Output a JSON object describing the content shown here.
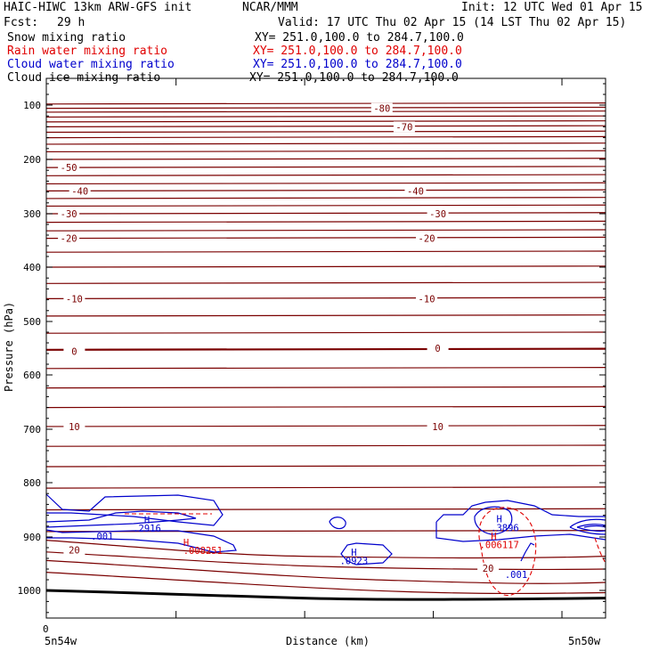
{
  "header": {
    "model": "HAIC-HIWC 13km ARW-GFS init",
    "org": "NCAR/MMM",
    "init": "Init: 12 UTC Wed 01 Apr 15",
    "fcst_label": "Fcst:",
    "fcst_value": "29 h",
    "valid": "Valid: 17 UTC Thu 02 Apr 15 (14 LST Thu 02 Apr 15)"
  },
  "fields": [
    {
      "name": "Snow mixing ratio",
      "xy": "XY= 251.0,100.0 to 284.7,100.0",
      "color": "#000000"
    },
    {
      "name": "Rain water mixing ratio",
      "xy": "XY= 251.0,100.0 to 284.7,100.0",
      "color": "#e00000"
    },
    {
      "name": "Cloud water mixing ratio",
      "xy": "XY= 251.0,100.0 to 284.7,100.0",
      "color": "#0000cc"
    },
    {
      "name": "Cloud ice mixing ratio",
      "xy": "XY= 251.0,100.0 to 284.7,100.0",
      "color": "#000000"
    }
  ],
  "chart_data": {
    "type": "contour-cross-section",
    "ylabel": "Pressure (hPa)",
    "xlabel": "Distance (km)",
    "yticks": [
      100,
      200,
      300,
      400,
      500,
      600,
      700,
      800,
      900,
      1000
    ],
    "ylim": [
      1050,
      50
    ],
    "x_start_label": "0",
    "x_left_location": "5n54w",
    "x_right_location": "5n50w",
    "temperature_labels": [
      {
        "value": "-80",
        "p": 106,
        "x": 0.6
      },
      {
        "value": "-70",
        "p": 140,
        "x": 0.64
      },
      {
        "value": "-50",
        "p": 215,
        "x": 0.04
      },
      {
        "value": "-40",
        "p": 258,
        "x": 0.06
      },
      {
        "value": "-40",
        "p": 258,
        "x": 0.66
      },
      {
        "value": "-30",
        "p": 300,
        "x": 0.04
      },
      {
        "value": "-30",
        "p": 300,
        "x": 0.7
      },
      {
        "value": "-20",
        "p": 346,
        "x": 0.04
      },
      {
        "value": "-20",
        "p": 346,
        "x": 0.68
      },
      {
        "value": "-10",
        "p": 458,
        "x": 0.05
      },
      {
        "value": "-10",
        "p": 458,
        "x": 0.68
      },
      {
        "value": "0",
        "p": 556,
        "x": 0.05
      },
      {
        "value": "0",
        "p": 550,
        "x": 0.7
      },
      {
        "value": "10",
        "p": 695,
        "x": 0.05
      },
      {
        "value": "10",
        "p": 695,
        "x": 0.7
      },
      {
        "value": "20",
        "p": 924,
        "x": 0.05
      },
      {
        "value": "20",
        "p": 958,
        "x": 0.79
      }
    ],
    "cloud_water_labels": [
      {
        "value": "H",
        "p": 868,
        "x": 0.18
      },
      {
        "value": ".2916",
        "p": 884,
        "x": 0.18
      },
      {
        "value": ".001",
        "p": 898,
        "x": 0.1
      },
      {
        "value": "H",
        "p": 928,
        "x": 0.55
      },
      {
        "value": ".0923",
        "p": 944,
        "x": 0.55
      },
      {
        "value": "H",
        "p": 866,
        "x": 0.81
      },
      {
        "value": ".3896",
        "p": 883,
        "x": 0.82
      },
      {
        "value": ".001",
        "p": 970,
        "x": 0.84
      }
    ],
    "rain_water_labels": [
      {
        "value": "H",
        "p": 910,
        "x": 0.25
      },
      {
        "value": ".008251",
        "p": 925,
        "x": 0.28
      },
      {
        "value": "H",
        "p": 898,
        "x": 0.8
      },
      {
        "value": ".006117",
        "p": 914,
        "x": 0.81
      }
    ],
    "colors": {
      "temperature": "#7a0000",
      "cloud_water": "#0000cc",
      "rain_water": "#e00000",
      "ground": "#000000"
    }
  }
}
